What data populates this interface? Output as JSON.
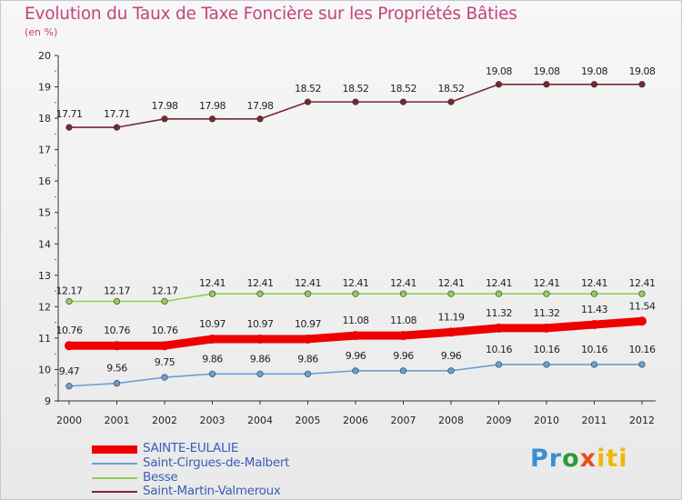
{
  "title": "Evolution du Taux de Taxe Foncière sur les Propriétés Bâties",
  "subtitle": "(en %)",
  "logo": {
    "text": "Proxiti",
    "parts": [
      "Pr",
      "o",
      "x",
      "iti"
    ]
  },
  "chart_data": {
    "type": "line",
    "x": [
      "2000",
      "2001",
      "2002",
      "2003",
      "2004",
      "2005",
      "2006",
      "2007",
      "2008",
      "2009",
      "2010",
      "2011",
      "2012"
    ],
    "ylim": [
      9,
      20
    ],
    "yticks": [
      "9",
      "10",
      "11",
      "12",
      "13",
      "14",
      "15",
      "16",
      "17",
      "18",
      "19",
      "20"
    ],
    "xlabel": "",
    "ylabel": "(en %)",
    "grid": false,
    "legend": "bottom-left",
    "series": [
      {
        "name": "Saint-Martin-Valmeroux",
        "color": "#7a2730",
        "values": [
          17.71,
          17.71,
          17.98,
          17.98,
          17.98,
          18.52,
          18.52,
          18.52,
          18.52,
          19.08,
          19.08,
          19.08,
          19.08
        ],
        "labels": [
          "17.71",
          "17.71",
          "17.98",
          "17.98",
          "17.98",
          "18.52",
          "18.52",
          "18.52",
          "18.52",
          "19.08",
          "19.08",
          "19.08",
          "19.08"
        ]
      },
      {
        "name": "Besse",
        "color": "#8ecf5a",
        "values": [
          12.17,
          12.17,
          12.17,
          12.41,
          12.41,
          12.41,
          12.41,
          12.41,
          12.41,
          12.41,
          12.41,
          12.41,
          12.41
        ],
        "labels": [
          "12.17",
          "12.17",
          "12.17",
          "12.41",
          "12.41",
          "12.41",
          "12.41",
          "12.41",
          "12.41",
          "12.41",
          "12.41",
          "12.41",
          "12.41"
        ]
      },
      {
        "name": "SAINTE-EULALIE",
        "color": "#ee0000",
        "values": [
          10.76,
          10.76,
          10.76,
          10.97,
          10.97,
          10.97,
          11.08,
          11.08,
          11.19,
          11.32,
          11.32,
          11.43,
          11.54
        ],
        "labels": [
          "10.76",
          "10.76",
          "10.76",
          "10.97",
          "10.97",
          "10.97",
          "11.08",
          "11.08",
          "11.19",
          "11.32",
          "11.32",
          "11.43",
          "11.54"
        ]
      },
      {
        "name": "Saint-Cirgues-de-Malbert",
        "color": "#6a9fd4",
        "values": [
          9.47,
          9.56,
          9.75,
          9.86,
          9.86,
          9.86,
          9.96,
          9.96,
          9.96,
          10.16,
          10.16,
          10.16,
          10.16
        ],
        "labels": [
          "9.47",
          "9.56",
          "9.75",
          "9.86",
          "9.86",
          "9.86",
          "9.96",
          "9.96",
          "9.96",
          "10.16",
          "10.16",
          "10.16",
          "10.16"
        ]
      }
    ],
    "legend_order": [
      "SAINTE-EULALIE",
      "Saint-Cirgues-de-Malbert",
      "Besse",
      "Saint-Martin-Valmeroux"
    ]
  }
}
